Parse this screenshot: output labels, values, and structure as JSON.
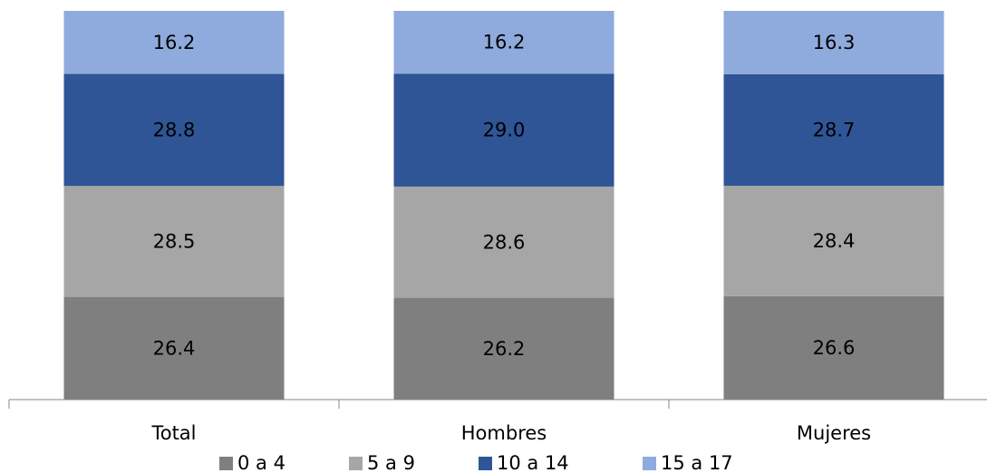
{
  "chart_data": {
    "type": "bar",
    "stacked": true,
    "normalized": true,
    "title": "",
    "xlabel": "",
    "ylabel": "",
    "ylim": [
      0,
      100
    ],
    "grid": false,
    "legend_position": "bottom",
    "categories": [
      "Total",
      "Hombres",
      "Mujeres"
    ],
    "series": [
      {
        "name": "0 a 4",
        "values": [
          26.4,
          26.2,
          26.6
        ],
        "labels": [
          "26.4",
          "26.2",
          "26.6"
        ],
        "color": "#7f7f7f"
      },
      {
        "name": "5 a 9",
        "values": [
          28.5,
          28.6,
          28.4
        ],
        "labels": [
          "28.5",
          "28.6",
          "28.4"
        ],
        "color": "#a6a6a6"
      },
      {
        "name": "10 a 14",
        "values": [
          28.8,
          29.0,
          28.7
        ],
        "labels": [
          "28.8",
          "29.0",
          "28.7"
        ],
        "color": "#2f5597"
      },
      {
        "name": "15 a 17",
        "values": [
          16.2,
          16.2,
          16.3
        ],
        "labels": [
          "16.2",
          "16.2",
          "16.3"
        ],
        "color": "#8faadc"
      }
    ]
  }
}
